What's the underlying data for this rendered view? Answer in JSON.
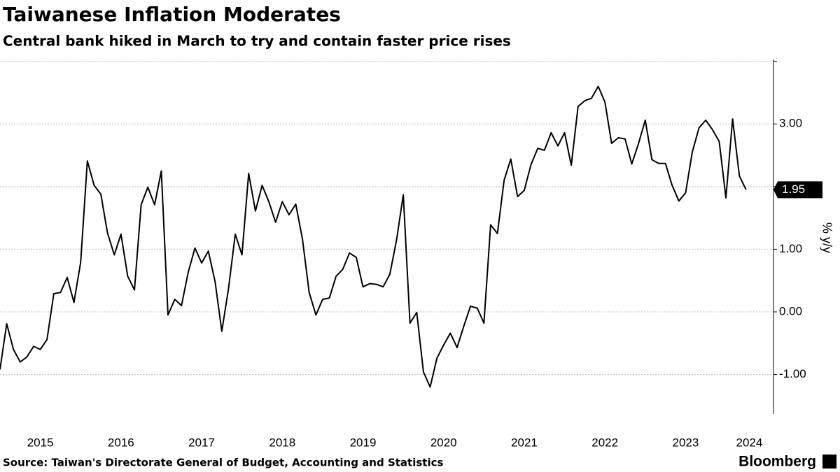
{
  "chart_data": {
    "type": "line",
    "title": "Taiwanese Inflation Moderates",
    "subtitle": "Central bank hiked in March to try and contain faster price rises",
    "y_axis_label": "% y/y",
    "source": "Source: Taiwan's Directorate General of Budget, Accounting and Statistics",
    "brand": "Bloomberg",
    "color": "#000000",
    "x": [
      2015,
      2015.083,
      2015.167,
      2015.25,
      2015.333,
      2015.417,
      2015.5,
      2015.583,
      2015.667,
      2015.75,
      2015.833,
      2015.917,
      2016,
      2016.083,
      2016.167,
      2016.25,
      2016.333,
      2016.417,
      2016.5,
      2016.583,
      2016.667,
      2016.75,
      2016.833,
      2016.917,
      2017,
      2017.083,
      2017.167,
      2017.25,
      2017.333,
      2017.417,
      2017.5,
      2017.583,
      2017.667,
      2017.75,
      2017.833,
      2017.917,
      2018,
      2018.083,
      2018.167,
      2018.25,
      2018.333,
      2018.417,
      2018.5,
      2018.583,
      2018.667,
      2018.75,
      2018.833,
      2018.917,
      2019,
      2019.083,
      2019.167,
      2019.25,
      2019.333,
      2019.417,
      2019.5,
      2019.583,
      2019.667,
      2019.75,
      2019.833,
      2019.917,
      2020,
      2020.083,
      2020.167,
      2020.25,
      2020.333,
      2020.417,
      2020.5,
      2020.583,
      2020.667,
      2020.75,
      2020.833,
      2020.917,
      2021,
      2021.083,
      2021.167,
      2021.25,
      2021.333,
      2021.417,
      2021.5,
      2021.583,
      2021.667,
      2021.75,
      2021.833,
      2021.917,
      2022,
      2022.083,
      2022.167,
      2022.25,
      2022.333,
      2022.417,
      2022.5,
      2022.583,
      2022.667,
      2022.75,
      2022.833,
      2022.917,
      2023,
      2023.083,
      2023.167,
      2023.25,
      2023.333,
      2023.417,
      2023.5,
      2023.583,
      2023.667,
      2023.75,
      2023.833,
      2023.917,
      2024,
      2024.083,
      2024.167,
      2024.25
    ],
    "values": [
      -0.92,
      -0.19,
      -0.6,
      -0.8,
      -0.72,
      -0.55,
      -0.6,
      -0.44,
      0.29,
      0.31,
      0.55,
      0.15,
      0.79,
      2.41,
      2.02,
      1.88,
      1.26,
      0.91,
      1.24,
      0.57,
      0.35,
      1.71,
      1.99,
      1.71,
      2.25,
      -0.05,
      0.2,
      0.1,
      0.63,
      1.02,
      0.78,
      0.97,
      0.48,
      -0.31,
      0.37,
      1.24,
      0.91,
      2.21,
      1.61,
      2.02,
      1.76,
      1.43,
      1.76,
      1.55,
      1.72,
      1.16,
      0.31,
      -0.05,
      0.2,
      0.22,
      0.57,
      0.68,
      0.94,
      0.87,
      0.4,
      0.45,
      0.44,
      0.4,
      0.6,
      1.15,
      1.87,
      -0.18,
      -0.01,
      -0.96,
      -1.2,
      -0.74,
      -0.53,
      -0.34,
      -0.57,
      -0.23,
      0.09,
      0.06,
      -0.18,
      1.39,
      1.25,
      2.1,
      2.44,
      1.84,
      1.94,
      2.35,
      2.61,
      2.58,
      2.86,
      2.65,
      2.86,
      2.34,
      3.28,
      3.37,
      3.41,
      3.6,
      3.35,
      2.69,
      2.78,
      2.76,
      2.36,
      2.69,
      3.06,
      2.43,
      2.37,
      2.37,
      2.02,
      1.77,
      1.9,
      2.55,
      2.94,
      3.06,
      2.91,
      2.72,
      1.82,
      3.08,
      2.17,
      1.95
    ],
    "xlim": [
      2015,
      2024.59
    ],
    "xticks": [
      {
        "value": 2015.5,
        "label": "2015"
      },
      {
        "value": 2016.5,
        "label": "2016"
      },
      {
        "value": 2017.5,
        "label": "2017"
      },
      {
        "value": 2018.5,
        "label": "2018"
      },
      {
        "value": 2019.5,
        "label": "2019"
      },
      {
        "value": 2020.5,
        "label": "2020"
      },
      {
        "value": 2021.5,
        "label": "2021"
      },
      {
        "value": 2022.5,
        "label": "2022"
      },
      {
        "value": 2023.5,
        "label": "2023"
      },
      {
        "value": 2024.29,
        "label": "2024"
      }
    ],
    "ylim": [
      -1.63,
      4.03
    ],
    "yticks": [
      {
        "value": -1,
        "label": "-1.00"
      },
      {
        "value": 0,
        "label": "0.00"
      },
      {
        "value": 1,
        "label": "1.00"
      },
      {
        "value": 3,
        "label": "3.00"
      }
    ],
    "ygrid": [
      -1,
      0,
      1,
      2,
      3,
      4
    ],
    "grid": true
  }
}
